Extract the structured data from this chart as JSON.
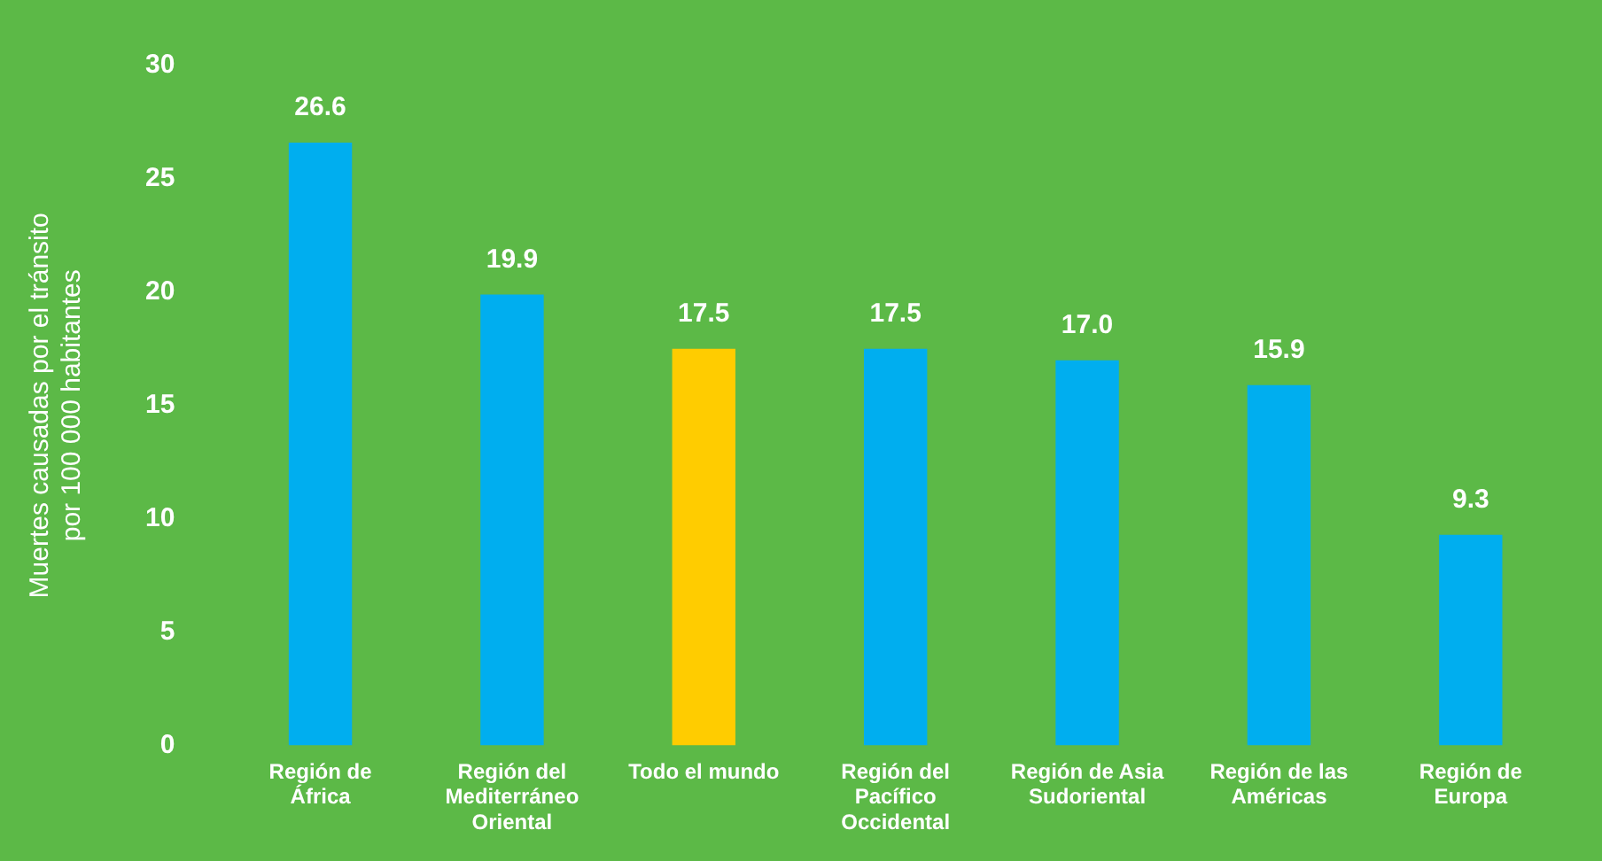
{
  "chart_data": {
    "type": "bar",
    "ylabel": "Muertes causadas por el tránsito\npor 100 000 habitantes",
    "categories": [
      "Región de África",
      "Región del Mediterráneo Oriental",
      "Todo el mundo",
      "Región del Pacífico Occidental",
      "Región de Asia Sudoriental",
      "Región de las Américas",
      "Región de Europa"
    ],
    "values": [
      26.6,
      19.9,
      17.5,
      17.5,
      17.0,
      15.9,
      9.3
    ],
    "value_labels": [
      "26.6",
      "19.9",
      "17.5",
      "17.5",
      "17.0",
      "15.9",
      "9.3"
    ],
    "colors": [
      "#00aeef",
      "#00aeef",
      "#ffcc00",
      "#00aeef",
      "#00aeef",
      "#00aeef",
      "#00aeef"
    ],
    "ylim": [
      0,
      30
    ],
    "yticks": [
      0,
      5,
      10,
      15,
      20,
      25,
      30
    ],
    "grid": false,
    "legend": false
  }
}
